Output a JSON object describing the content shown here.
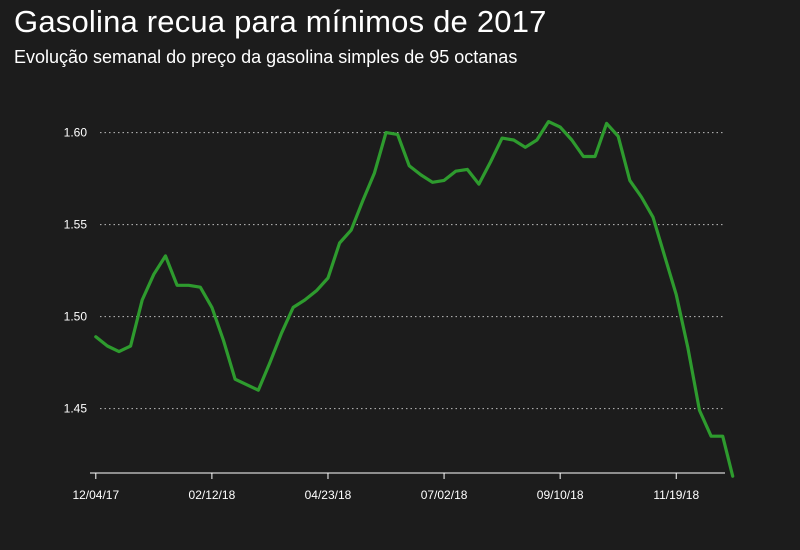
{
  "header": {
    "title": "Gasolina recua para mínimos de 2017",
    "subtitle": "Evolução semanal do preço da gasolina simples de 95 octanas"
  },
  "colors": {
    "background": "#1c1c1c",
    "line": "#2e9b2e",
    "text": "#ffffff",
    "grid": "#bfbfbf"
  },
  "chart_data": {
    "type": "line",
    "title": "Gasolina recua para mínimos de 2017",
    "subtitle": "Evolução semanal do preço da gasolina simples de 95 octanas",
    "xlabel": "",
    "ylabel": "",
    "ylim": [
      1.415,
      1.615
    ],
    "yticks": [
      1.45,
      1.5,
      1.55,
      1.6
    ],
    "ytick_labels": [
      "1.45",
      "1.50",
      "1.55",
      "1.60"
    ],
    "xlim": [
      -0.5,
      54.2
    ],
    "xticks": [
      0,
      10,
      20,
      30,
      40,
      50
    ],
    "xtick_labels": [
      "12/04/17",
      "02/12/18",
      "04/23/18",
      "07/02/18",
      "09/10/18",
      "11/19/18"
    ],
    "grid": "horizontal dotted",
    "legend": "none",
    "series": [
      {
        "x": [
          0,
          1,
          2,
          3,
          4,
          5,
          6,
          7,
          8,
          9,
          10,
          11,
          12,
          13,
          14,
          15,
          16,
          17,
          18,
          19,
          20,
          21,
          22,
          23,
          24,
          25,
          26,
          27,
          28,
          29,
          30,
          31,
          32,
          33,
          34,
          35,
          36,
          37,
          38,
          39,
          40,
          41,
          42,
          43,
          44,
          45,
          46,
          47,
          48,
          49,
          50,
          51,
          52,
          53,
          54
        ],
        "values": [
          1.489,
          1.484,
          1.481,
          1.484,
          1.509,
          1.523,
          1.533,
          1.517,
          1.517,
          1.516,
          1.505,
          1.487,
          1.466,
          1.463,
          1.46,
          1.475,
          1.491,
          1.505,
          1.509,
          1.514,
          1.521,
          1.54,
          1.547,
          1.563,
          1.578,
          1.6,
          1.599,
          1.582,
          1.577,
          1.573,
          1.574,
          1.579,
          1.58,
          1.572,
          1.584,
          1.597,
          1.596,
          1.592,
          1.596,
          1.606,
          1.603,
          1.596,
          1.587,
          1.587,
          1.605,
          1.598,
          1.574,
          1.565,
          1.554,
          1.533,
          1.512,
          1.483,
          1.449,
          1.435,
          1.435
        ]
      }
    ]
  }
}
